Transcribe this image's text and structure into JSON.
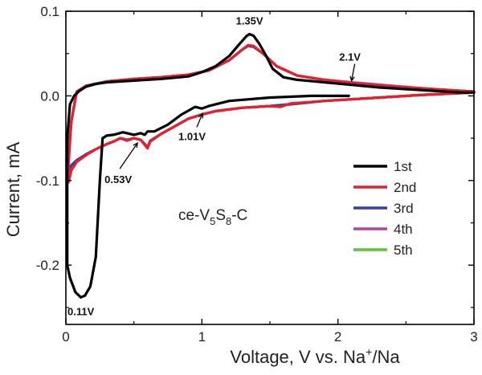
{
  "chart_data": {
    "type": "line",
    "title": "",
    "xlabel": "Voltage, V vs. Na",
    "xlabel_sup": "+",
    "xlabel_tail": "/Na",
    "ylabel": "Current, mA",
    "xlim": [
      0,
      3
    ],
    "ylim": [
      -0.27,
      0.1
    ],
    "x_ticks": [
      0,
      1,
      2,
      3
    ],
    "x_tick_labels": [
      "0",
      "1",
      "2",
      "3"
    ],
    "y_ticks": [
      0.1,
      0.0,
      -0.1,
      -0.2
    ],
    "y_tick_labels": [
      "0.1",
      "0.0",
      "-0.1",
      "-0.2"
    ],
    "grid": false,
    "legend_position": "lower-right",
    "sample_label": {
      "text_a": "ce-V",
      "sub_a": "5",
      "text_b": "S",
      "sub_b": "8",
      "text_c": "-C"
    },
    "series": [
      {
        "name": "1st",
        "color": "#000000",
        "x": [
          2.08,
          1.8,
          1.5,
          1.2,
          1.05,
          1.0,
          0.95,
          0.85,
          0.75,
          0.65,
          0.6,
          0.58,
          0.55,
          0.5,
          0.42,
          0.35,
          0.3,
          0.27,
          0.25,
          0.22,
          0.18,
          0.14,
          0.11,
          0.07,
          0.03,
          0.01,
          0.01,
          0.03,
          0.06,
          0.1,
          0.15,
          0.22,
          0.3,
          0.5,
          0.7,
          0.9,
          1.0,
          1.1,
          1.2,
          1.28,
          1.33,
          1.35,
          1.38,
          1.42,
          1.47,
          1.52,
          1.6,
          1.7,
          1.9,
          2.1,
          2.3,
          2.5,
          2.7,
          2.9,
          3.0
        ],
        "y": [
          0.0,
          0.0,
          -0.002,
          -0.006,
          -0.012,
          -0.015,
          -0.013,
          -0.022,
          -0.034,
          -0.042,
          -0.042,
          -0.046,
          -0.044,
          -0.046,
          -0.043,
          -0.046,
          -0.047,
          -0.05,
          -0.1,
          -0.19,
          -0.225,
          -0.236,
          -0.238,
          -0.232,
          -0.215,
          -0.2,
          -0.05,
          -0.01,
          0.0,
          0.006,
          0.011,
          0.014,
          0.016,
          0.018,
          0.02,
          0.023,
          0.028,
          0.035,
          0.047,
          0.062,
          0.071,
          0.073,
          0.071,
          0.062,
          0.048,
          0.032,
          0.022,
          0.019,
          0.016,
          0.013,
          0.01,
          0.008,
          0.006,
          0.004,
          0.004
        ]
      },
      {
        "name": "2nd",
        "color": "#e8202a",
        "x": [
          3.0,
          2.6,
          2.2,
          1.9,
          1.65,
          1.58,
          1.5,
          1.3,
          1.1,
          1.0,
          0.9,
          0.8,
          0.7,
          0.62,
          0.6,
          0.58,
          0.55,
          0.5,
          0.45,
          0.4,
          0.35,
          0.3,
          0.22,
          0.15,
          0.08,
          0.04,
          0.02,
          0.02,
          0.04,
          0.08,
          0.15,
          0.3,
          0.5,
          0.7,
          0.9,
          1.05,
          1.2,
          1.3,
          1.34,
          1.38,
          1.45,
          1.55,
          1.7,
          1.9,
          2.1,
          2.4,
          2.7,
          3.0
        ],
        "y": [
          0.004,
          0.001,
          -0.003,
          -0.006,
          -0.009,
          -0.013,
          -0.012,
          -0.014,
          -0.018,
          -0.022,
          -0.027,
          -0.036,
          -0.045,
          -0.054,
          -0.062,
          -0.058,
          -0.052,
          -0.05,
          -0.053,
          -0.05,
          -0.054,
          -0.057,
          -0.063,
          -0.07,
          -0.078,
          -0.088,
          -0.102,
          -0.08,
          -0.03,
          0.005,
          0.012,
          0.017,
          0.02,
          0.022,
          0.025,
          0.03,
          0.042,
          0.055,
          0.06,
          0.059,
          0.05,
          0.035,
          0.024,
          0.019,
          0.015,
          0.011,
          0.008,
          0.005
        ]
      },
      {
        "name": "3rd",
        "color": "#3040b0",
        "x": [
          3.0,
          2.6,
          2.2,
          1.9,
          1.65,
          1.5,
          1.3,
          1.1,
          1.0,
          0.9,
          0.8,
          0.7,
          0.62,
          0.6,
          0.58,
          0.55,
          0.5,
          0.45,
          0.4,
          0.35,
          0.3,
          0.22,
          0.15,
          0.08,
          0.04,
          0.02,
          0.02,
          0.04,
          0.08,
          0.15,
          0.3,
          0.5,
          0.7,
          0.9,
          1.05,
          1.2,
          1.3,
          1.34,
          1.38,
          1.45,
          1.55,
          1.7,
          1.9,
          2.1,
          2.4,
          2.7,
          3.0
        ],
        "y": [
          0.004,
          0.001,
          -0.003,
          -0.006,
          -0.01,
          -0.012,
          -0.014,
          -0.018,
          -0.022,
          -0.027,
          -0.036,
          -0.045,
          -0.053,
          -0.061,
          -0.057,
          -0.052,
          -0.05,
          -0.052,
          -0.05,
          -0.054,
          -0.057,
          -0.063,
          -0.069,
          -0.076,
          -0.082,
          -0.088,
          -0.07,
          -0.03,
          0.005,
          0.012,
          0.017,
          0.02,
          0.022,
          0.025,
          0.03,
          0.042,
          0.055,
          0.059,
          0.058,
          0.05,
          0.035,
          0.024,
          0.019,
          0.015,
          0.011,
          0.008,
          0.005
        ]
      },
      {
        "name": "4th",
        "color": "#b040b0",
        "x": [
          3.0,
          2.6,
          2.2,
          1.9,
          1.65,
          1.5,
          1.3,
          1.1,
          1.0,
          0.9,
          0.8,
          0.7,
          0.62,
          0.6,
          0.58,
          0.55,
          0.5,
          0.45,
          0.4,
          0.35,
          0.3,
          0.22,
          0.15,
          0.08,
          0.04,
          0.02,
          0.02,
          0.04,
          0.08,
          0.15,
          0.3,
          0.5,
          0.7,
          0.9,
          1.05,
          1.2,
          1.3,
          1.34,
          1.38,
          1.45,
          1.55,
          1.7,
          1.9,
          2.1,
          2.4,
          2.7,
          3.0
        ],
        "y": [
          0.004,
          0.001,
          -0.003,
          -0.006,
          -0.01,
          -0.012,
          -0.014,
          -0.018,
          -0.022,
          -0.027,
          -0.036,
          -0.045,
          -0.053,
          -0.061,
          -0.057,
          -0.052,
          -0.05,
          -0.052,
          -0.05,
          -0.054,
          -0.057,
          -0.063,
          -0.069,
          -0.076,
          -0.082,
          -0.088,
          -0.07,
          -0.03,
          0.005,
          0.012,
          0.017,
          0.02,
          0.022,
          0.025,
          0.03,
          0.042,
          0.055,
          0.059,
          0.058,
          0.05,
          0.035,
          0.024,
          0.019,
          0.016,
          0.012,
          0.008,
          0.005
        ]
      },
      {
        "name": "5th",
        "color": "#5cc23c",
        "x": [
          3.0,
          2.6,
          2.2,
          1.9,
          1.65,
          1.5,
          1.3,
          1.1,
          1.0,
          0.9,
          0.8,
          0.7,
          0.62,
          0.6,
          0.58,
          0.55,
          0.5,
          0.45,
          0.4,
          0.35,
          0.3,
          0.22,
          0.15,
          0.08,
          0.04,
          0.02,
          0.02,
          0.04,
          0.08,
          0.15,
          0.3,
          0.5,
          0.7,
          0.9,
          1.05,
          1.2,
          1.3,
          1.34,
          1.38,
          1.45,
          1.55,
          1.7,
          1.9,
          2.1,
          2.4,
          2.7,
          3.0
        ],
        "y": [
          0.004,
          0.001,
          -0.003,
          -0.006,
          -0.01,
          -0.012,
          -0.014,
          -0.018,
          -0.022,
          -0.027,
          -0.036,
          -0.045,
          -0.053,
          -0.061,
          -0.057,
          -0.052,
          -0.05,
          -0.052,
          -0.05,
          -0.054,
          -0.057,
          -0.063,
          -0.069,
          -0.076,
          -0.082,
          -0.088,
          -0.07,
          -0.03,
          0.005,
          0.012,
          0.017,
          0.02,
          0.022,
          0.025,
          0.03,
          0.042,
          0.055,
          0.059,
          0.058,
          0.05,
          0.035,
          0.024,
          0.019,
          0.015,
          0.011,
          0.008,
          0.005
        ]
      }
    ],
    "annotations": [
      {
        "text": "1.35V",
        "x": 1.35,
        "y": 0.073,
        "arrow": false
      },
      {
        "text": "2.1V",
        "x": 2.1,
        "y": 0.015,
        "arrow": true
      },
      {
        "text": "1.01V",
        "x": 1.01,
        "y": -0.018,
        "arrow": true
      },
      {
        "text": "0.53V",
        "x": 0.55,
        "y": -0.05,
        "arrow": true
      },
      {
        "text": "0.11V",
        "x": 0.11,
        "y": -0.238,
        "arrow": false
      }
    ]
  }
}
